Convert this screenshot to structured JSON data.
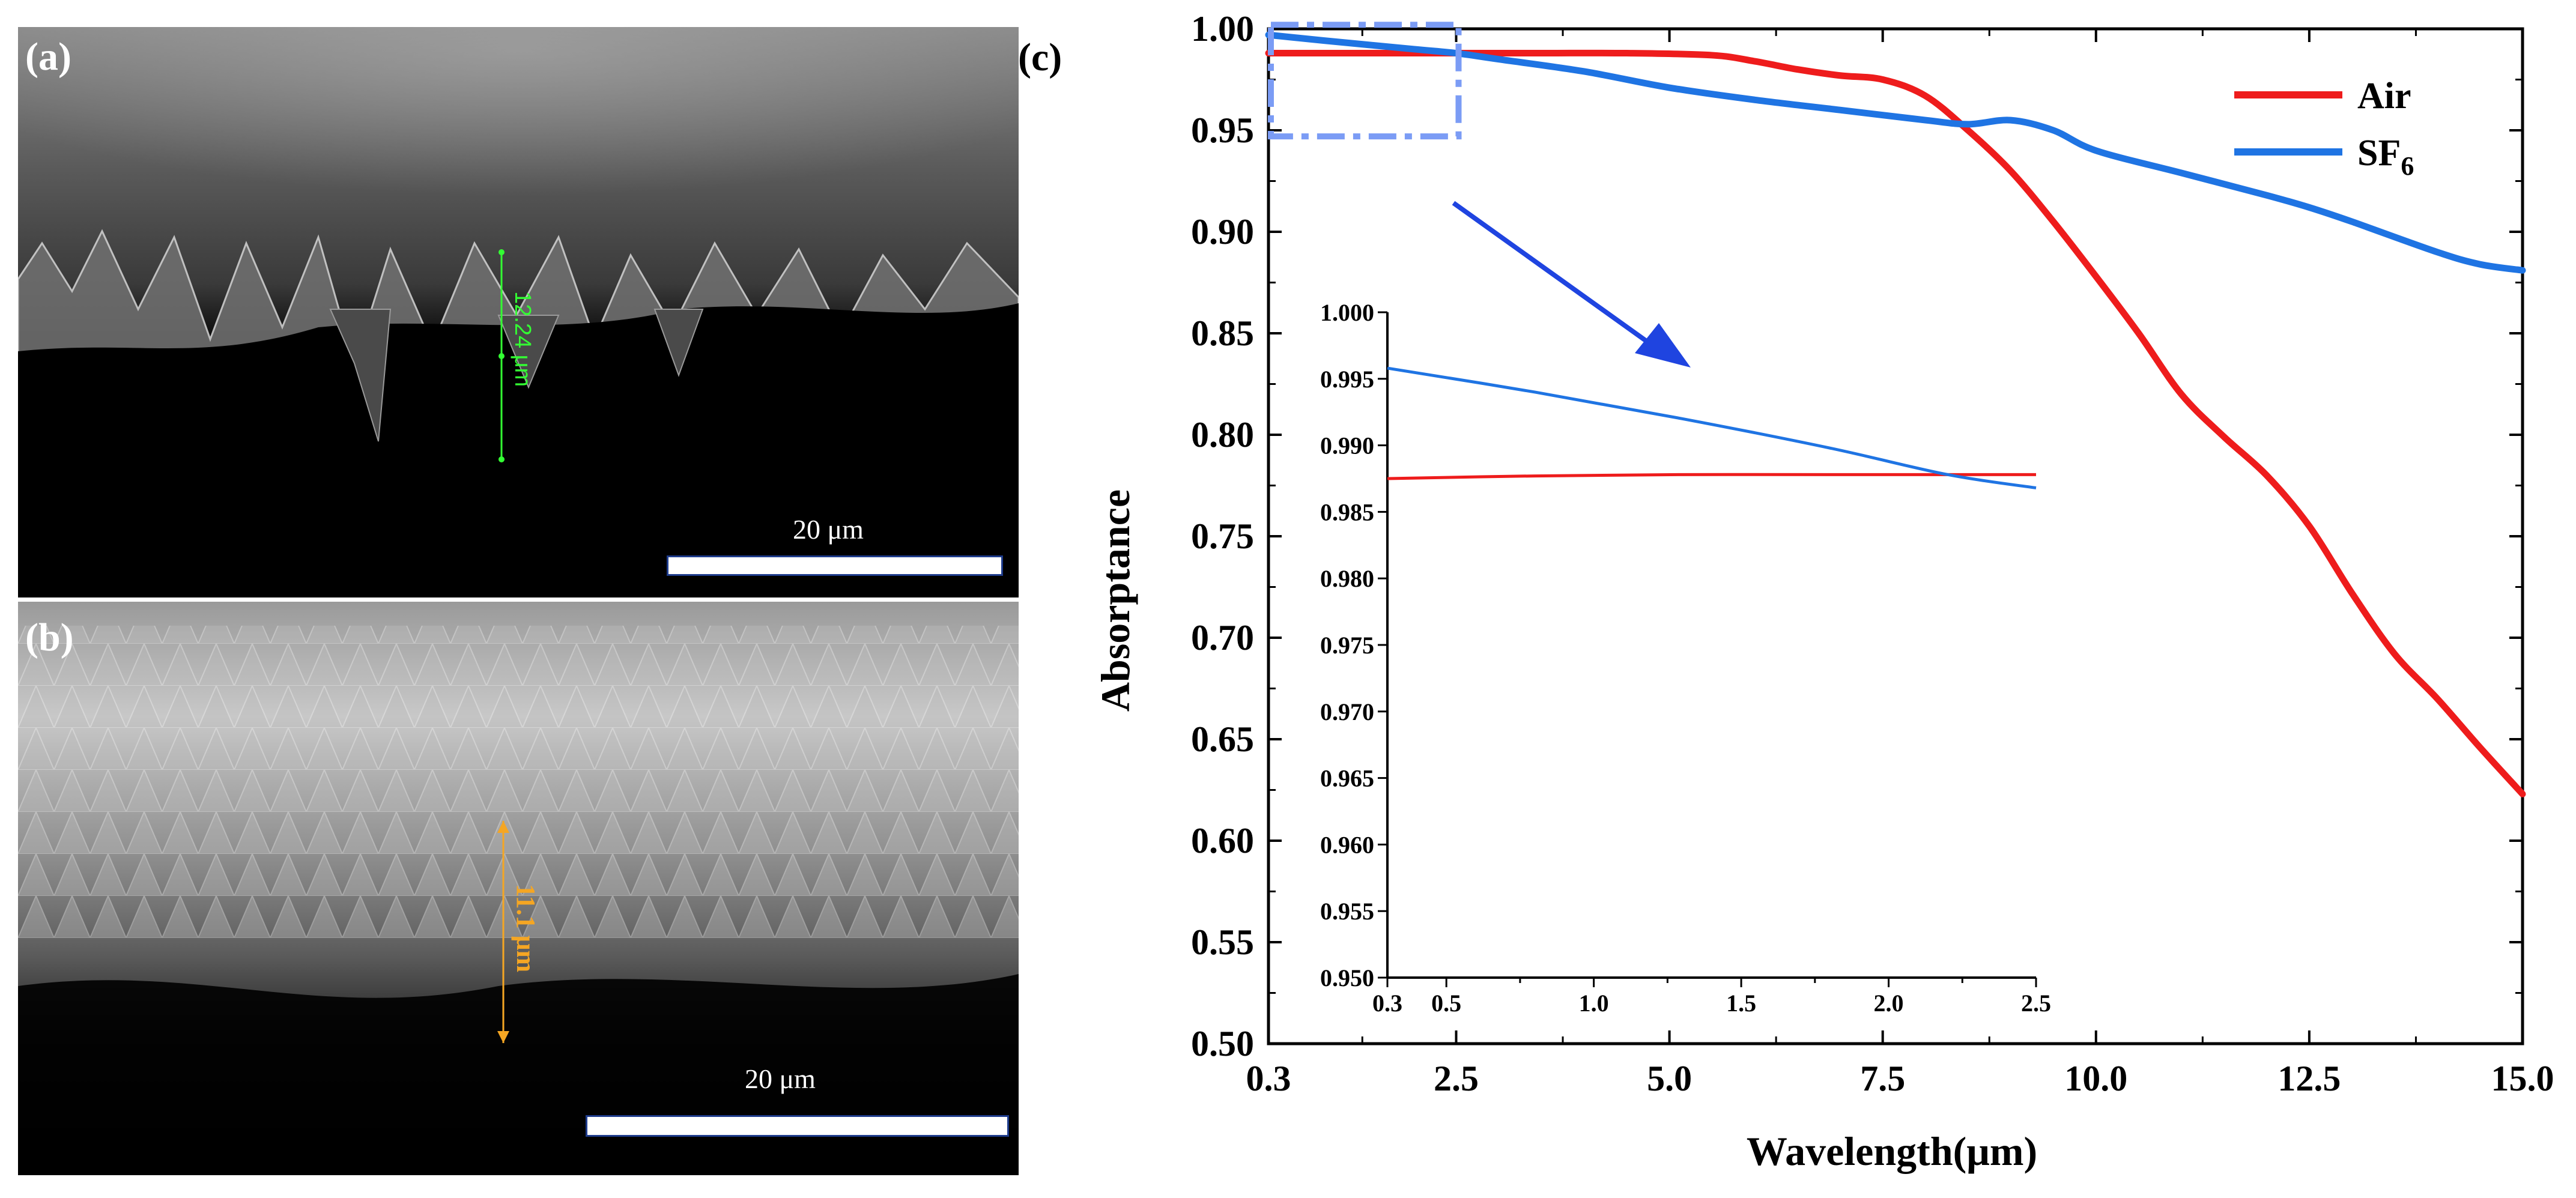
{
  "panels": {
    "a": {
      "label": "(a)",
      "measure_label": "12.24 μm",
      "scale_label": "20 μm"
    },
    "b": {
      "label": "(b)",
      "measure_label": "11.1 μm",
      "scale_label": "20 μm"
    },
    "c": {
      "label": "(c)"
    }
  },
  "colors": {
    "air": "#ee1c1c",
    "sf6": "#1f74e3",
    "measure_a": "#33ff33",
    "measure_b": "#f5a623",
    "zoom_box": "#7b9cf5",
    "arrow": "#1f44e0"
  },
  "chart_data": [
    {
      "type": "line",
      "id": "main",
      "xlabel": "Wavelength(μm)",
      "ylabel": "Absorptance",
      "xlim": [
        0.3,
        15.0
      ],
      "ylim": [
        0.5,
        1.0
      ],
      "xticks": [
        0.3,
        2.5,
        5.0,
        7.5,
        10.0,
        12.5,
        15.0
      ],
      "xtick_labels": [
        "0.3",
        "2.5",
        "5.0",
        "7.5",
        "10.0",
        "12.5",
        "15.0"
      ],
      "yticks": [
        0.5,
        0.55,
        0.6,
        0.65,
        0.7,
        0.75,
        0.8,
        0.85,
        0.9,
        0.95,
        1.0
      ],
      "ytick_labels": [
        "0.50",
        "0.55",
        "0.60",
        "0.65",
        "0.70",
        "0.75",
        "0.80",
        "0.85",
        "0.90",
        "0.95",
        "1.00"
      ],
      "legend": {
        "position": "top-right",
        "entries": [
          {
            "name": "Air",
            "series": "air"
          },
          {
            "name": "SF",
            "sub": "6",
            "series": "sf6"
          }
        ]
      },
      "series": [
        {
          "name": "Air",
          "key": "air",
          "x": [
            0.3,
            1.0,
            2.0,
            2.5,
            3.5,
            4.5,
            5.5,
            6.0,
            6.5,
            7.0,
            7.5,
            8.0,
            8.5,
            9.0,
            9.5,
            10.0,
            10.5,
            11.0,
            11.5,
            12.0,
            12.5,
            13.0,
            13.5,
            14.0,
            14.5,
            15.0
          ],
          "y": [
            0.988,
            0.988,
            0.988,
            0.988,
            0.988,
            0.988,
            0.987,
            0.984,
            0.98,
            0.977,
            0.975,
            0.967,
            0.95,
            0.93,
            0.905,
            0.878,
            0.85,
            0.82,
            0.799,
            0.78,
            0.755,
            0.722,
            0.692,
            0.67,
            0.646,
            0.623
          ]
        },
        {
          "name": "SF6",
          "key": "sf6",
          "x": [
            0.3,
            1.0,
            2.0,
            2.5,
            3.0,
            4.0,
            5.0,
            6.0,
            7.0,
            8.0,
            8.5,
            9.0,
            9.5,
            10.0,
            11.0,
            12.0,
            12.5,
            13.0,
            14.0,
            14.5,
            15.0
          ],
          "y": [
            0.997,
            0.994,
            0.99,
            0.988,
            0.985,
            0.979,
            0.971,
            0.965,
            0.96,
            0.955,
            0.953,
            0.955,
            0.95,
            0.94,
            0.929,
            0.918,
            0.912,
            0.905,
            0.89,
            0.884,
            0.881
          ]
        }
      ]
    },
    {
      "type": "line",
      "id": "inset",
      "xlim": [
        0.3,
        2.5
      ],
      "ylim": [
        0.95,
        1.0
      ],
      "xticks": [
        0.3,
        0.5,
        1.0,
        1.5,
        2.0,
        2.5
      ],
      "xtick_labels": [
        "0.3",
        "0.5",
        "1.0",
        "1.5",
        "2.0",
        "2.5"
      ],
      "yticks": [
        0.95,
        0.955,
        0.96,
        0.965,
        0.97,
        0.975,
        0.98,
        0.985,
        0.99,
        0.995,
        1.0
      ],
      "ytick_labels": [
        "0.950",
        "0.955",
        "0.960",
        "0.965",
        "0.970",
        "0.975",
        "0.980",
        "0.985",
        "0.990",
        "0.995",
        "1.000"
      ],
      "series": [
        {
          "name": "Air",
          "key": "air",
          "x": [
            0.3,
            0.8,
            1.3,
            1.8,
            2.5
          ],
          "y": [
            0.9875,
            0.9877,
            0.9878,
            0.9878,
            0.9878
          ]
        },
        {
          "name": "SF6",
          "key": "sf6",
          "x": [
            0.3,
            0.8,
            1.3,
            1.8,
            2.2,
            2.5
          ],
          "y": [
            0.9958,
            0.994,
            0.992,
            0.9898,
            0.9878,
            0.9868
          ]
        }
      ]
    }
  ]
}
